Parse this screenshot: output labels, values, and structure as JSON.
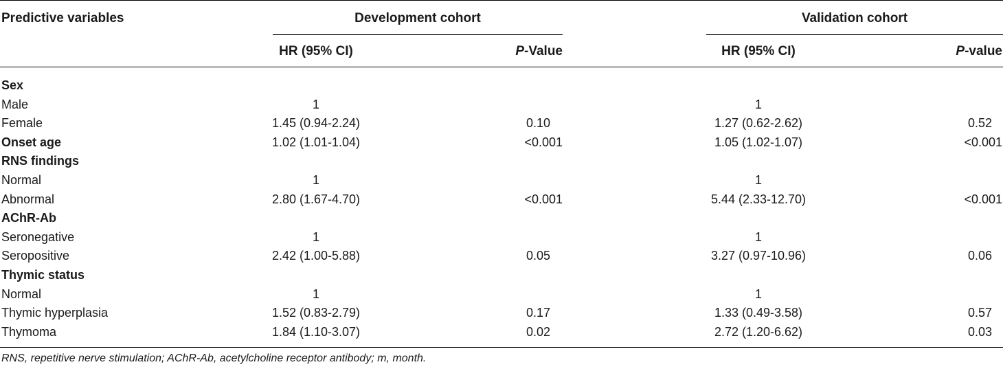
{
  "header": {
    "predictive_variables": "Predictive variables",
    "development_cohort": "Development cohort",
    "validation_cohort": "Validation cohort",
    "hr_col": "HR (95% CI)",
    "p_dev_italic": "P",
    "p_dev_rest": "-Value",
    "p_val_italic": "P",
    "p_val_rest": "-value"
  },
  "rows": [
    {
      "label": "Sex",
      "bold": true,
      "hr_dev": "",
      "p_dev": "",
      "hr_val": "",
      "p_val": ""
    },
    {
      "label": "Male",
      "bold": false,
      "hr_dev": "1",
      "p_dev": "",
      "hr_val": "1",
      "p_val": ""
    },
    {
      "label": "Female",
      "bold": false,
      "hr_dev": "1.45 (0.94-2.24)",
      "p_dev": "0.10",
      "hr_val": "1.27 (0.62-2.62)",
      "p_val": "0.52"
    },
    {
      "label": "Onset age",
      "bold": true,
      "hr_dev": "1.02 (1.01-1.04)",
      "p_dev": "<0.001",
      "hr_val": "1.05 (1.02-1.07)",
      "p_val": "<0.001"
    },
    {
      "label": "RNS findings",
      "bold": true,
      "hr_dev": "",
      "p_dev": "",
      "hr_val": "",
      "p_val": ""
    },
    {
      "label": "Normal",
      "bold": false,
      "hr_dev": "1",
      "p_dev": "",
      "hr_val": "1",
      "p_val": ""
    },
    {
      "label": "Abnormal",
      "bold": false,
      "hr_dev": "2.80 (1.67-4.70)",
      "p_dev": "<0.001",
      "hr_val": "5.44 (2.33-12.70)",
      "p_val": "<0.001"
    },
    {
      "label": "AChR-Ab",
      "bold": true,
      "hr_dev": "",
      "p_dev": "",
      "hr_val": "",
      "p_val": ""
    },
    {
      "label": "Seronegative",
      "bold": false,
      "hr_dev": "1",
      "p_dev": "",
      "hr_val": "1",
      "p_val": ""
    },
    {
      "label": "Seropositive",
      "bold": false,
      "hr_dev": "2.42 (1.00-5.88)",
      "p_dev": "0.05",
      "hr_val": "3.27 (0.97-10.96)",
      "p_val": "0.06"
    },
    {
      "label": "Thymic status",
      "bold": true,
      "hr_dev": "",
      "p_dev": "",
      "hr_val": "",
      "p_val": ""
    },
    {
      "label": "Normal",
      "bold": false,
      "hr_dev": "1",
      "p_dev": "",
      "hr_val": "1",
      "p_val": ""
    },
    {
      "label": "Thymic hyperplasia",
      "bold": false,
      "hr_dev": "1.52 (0.83-2.79)",
      "p_dev": "0.17",
      "hr_val": "1.33 (0.49-3.58)",
      "p_val": "0.57"
    },
    {
      "label": "Thymoma",
      "bold": false,
      "hr_dev": "1.84 (1.10-3.07)",
      "p_dev": "0.02",
      "hr_val": "2.72 (1.20-6.62)",
      "p_val": "0.03"
    }
  ],
  "footnote": "RNS, repetitive nerve stimulation; AChR-Ab, acetylcholine receptor antibody; m, month."
}
